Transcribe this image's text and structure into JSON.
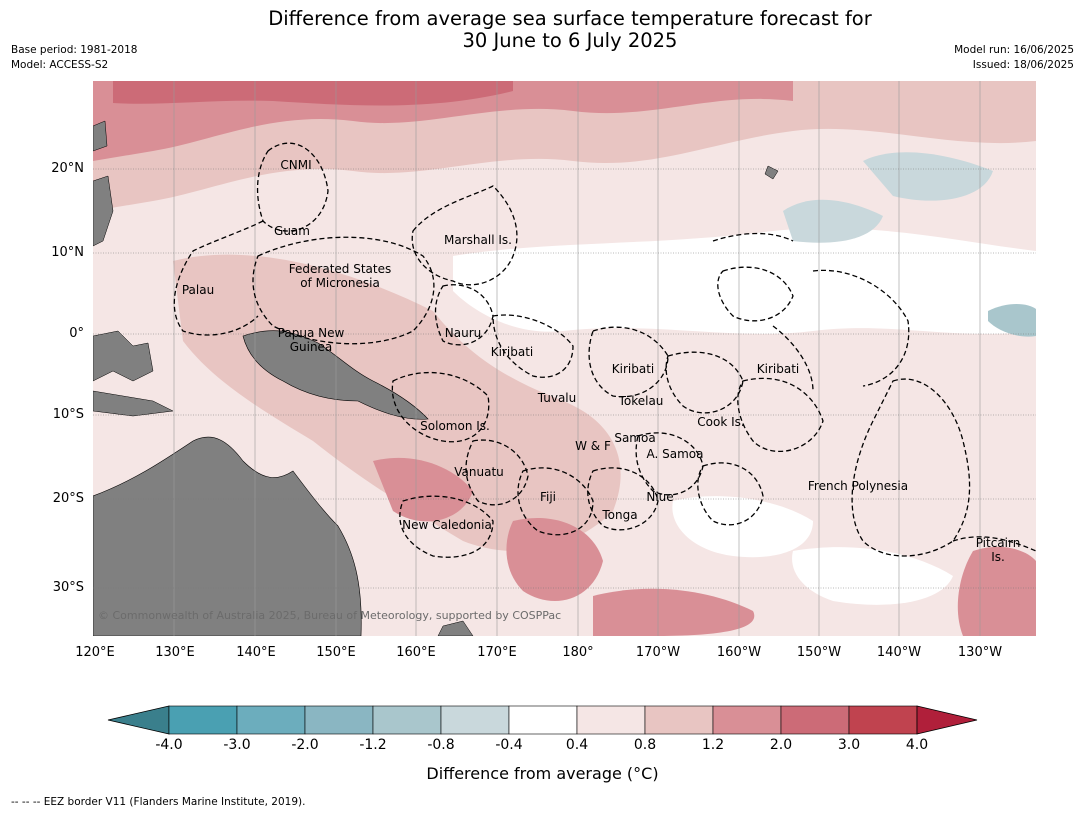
{
  "title": {
    "line1": "Difference from average sea surface temperature forecast for",
    "line2": "30 June to 6 July 2025"
  },
  "meta_left": {
    "base_period": "Base period: 1981-2018",
    "model": "Model: ACCESS-S2"
  },
  "meta_right": {
    "model_run": "Model run: 16/06/2025",
    "issued": "Issued: 18/06/2025"
  },
  "map": {
    "lat_labels": [
      "20°N",
      "10°N",
      "0°",
      "10°S",
      "20°S",
      "30°S"
    ],
    "lon_labels": [
      "120°E",
      "130°E",
      "140°E",
      "150°E",
      "160°E",
      "170°E",
      "180°",
      "170°W",
      "160°W",
      "150°W",
      "140°W",
      "130°W"
    ],
    "places": [
      "CNMI",
      "Guam",
      "Marshall Is.",
      "Federated States",
      "of Micronesia",
      "Palau",
      "Papua New",
      "Guinea",
      "Nauru",
      "Kiribati",
      "Kiribati",
      "Kiribati",
      "Tuvalu",
      "Tokelau",
      "Solomon Is.",
      "Cook Is.",
      "Samoa",
      "W & F",
      "A. Samoa",
      "Vanuatu",
      "Fiji",
      "Niue",
      "French Polynesia",
      "Tonga",
      "New Caledonia",
      "Pitcairn",
      "Is."
    ],
    "copyright": "© Commonwealth of Australia 2025, Bureau of Meteorology, supported by COSPPac",
    "land_color": "#808080",
    "eez_style": "dashed black"
  },
  "colorbar": {
    "ticks": [
      "-4.0",
      "-3.0",
      "-2.0",
      "-1.2",
      "-0.8",
      "-0.4",
      "0.4",
      "0.8",
      "1.2",
      "2.0",
      "3.0",
      "4.0"
    ],
    "colors": [
      "#3a7f8c",
      "#4aa0b2",
      "#6cadbd",
      "#8ab6c2",
      "#a9c6cc",
      "#c9d8dc",
      "#ffffff",
      "#f5e6e5",
      "#e8c5c2",
      "#d98f96",
      "#cc6b77",
      "#c0434f",
      "#b01f3a"
    ],
    "label": "Difference from average ($^\\circ$C)",
    "label_display": "Difference from average (°C)"
  },
  "footnote": "--  --  -- EEZ border V11 (Flanders Marine Institute, 2019)."
}
